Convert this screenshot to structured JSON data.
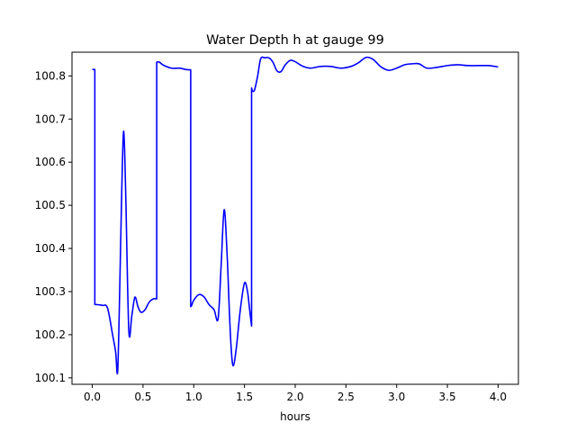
{
  "chart_data": {
    "type": "line",
    "title": "Water Depth h at gauge 99",
    "xlabel": "hours",
    "ylabel": "",
    "xlim": [
      -0.2,
      4.2
    ],
    "ylim": [
      100.085,
      100.855
    ],
    "xticks": [
      0.0,
      0.5,
      1.0,
      1.5,
      2.0,
      2.5,
      3.0,
      3.5,
      4.0
    ],
    "xtick_labels": [
      "0.0",
      "0.5",
      "1.0",
      "1.5",
      "2.0",
      "2.5",
      "3.0",
      "3.5",
      "4.0"
    ],
    "yticks": [
      100.1,
      100.2,
      100.3,
      100.4,
      100.5,
      100.6,
      100.7,
      100.8
    ],
    "ytick_labels": [
      "100.1",
      "100.2",
      "100.3",
      "100.4",
      "100.5",
      "100.6",
      "100.7",
      "100.8"
    ],
    "grid": false,
    "series": [
      {
        "color": "#0000ff",
        "x": [
          0.0,
          0.025,
          0.025,
          0.1,
          0.15,
          0.2,
          0.23,
          0.25,
          0.27,
          0.29,
          0.31,
          0.33,
          0.36,
          0.39,
          0.42,
          0.45,
          0.48,
          0.52,
          0.56,
          0.6,
          0.635,
          0.635,
          0.66,
          0.7,
          0.78,
          0.86,
          0.92,
          0.97,
          0.97,
          0.98,
          1.0,
          1.05,
          1.1,
          1.15,
          1.2,
          1.24,
          1.27,
          1.3,
          1.33,
          1.35,
          1.37,
          1.39,
          1.42,
          1.46,
          1.5,
          1.53,
          1.55,
          1.57,
          1.57,
          1.58,
          1.6,
          1.63,
          1.66,
          1.7,
          1.74,
          1.78,
          1.82,
          1.86,
          1.9,
          1.95,
          2.0,
          2.07,
          2.15,
          2.25,
          2.35,
          2.45,
          2.55,
          2.62,
          2.7,
          2.77,
          2.84,
          2.92,
          3.0,
          3.08,
          3.15,
          3.22,
          3.3,
          3.4,
          3.5,
          3.6,
          3.7,
          3.8,
          3.9,
          4.0
        ],
        "y": [
          100.815,
          100.815,
          100.27,
          100.268,
          100.262,
          100.2,
          100.16,
          100.115,
          100.3,
          100.53,
          100.672,
          100.52,
          100.21,
          100.245,
          100.287,
          100.265,
          100.252,
          100.258,
          100.275,
          100.283,
          100.283,
          100.832,
          100.832,
          100.825,
          100.818,
          100.818,
          100.815,
          100.814,
          100.265,
          100.268,
          100.28,
          100.293,
          100.288,
          100.27,
          100.258,
          100.237,
          100.36,
          100.49,
          100.38,
          100.26,
          100.165,
          100.128,
          100.17,
          100.26,
          100.32,
          100.3,
          100.26,
          100.22,
          100.772,
          100.765,
          100.768,
          100.8,
          100.84,
          100.842,
          100.842,
          100.832,
          100.812,
          100.81,
          100.825,
          100.836,
          100.833,
          100.823,
          100.818,
          100.822,
          100.822,
          100.818,
          100.822,
          100.83,
          100.843,
          100.838,
          100.822,
          100.813,
          100.818,
          100.826,
          100.828,
          100.828,
          100.818,
          100.82,
          100.824,
          100.826,
          100.824,
          100.824,
          100.824,
          100.821
        ]
      }
    ]
  }
}
